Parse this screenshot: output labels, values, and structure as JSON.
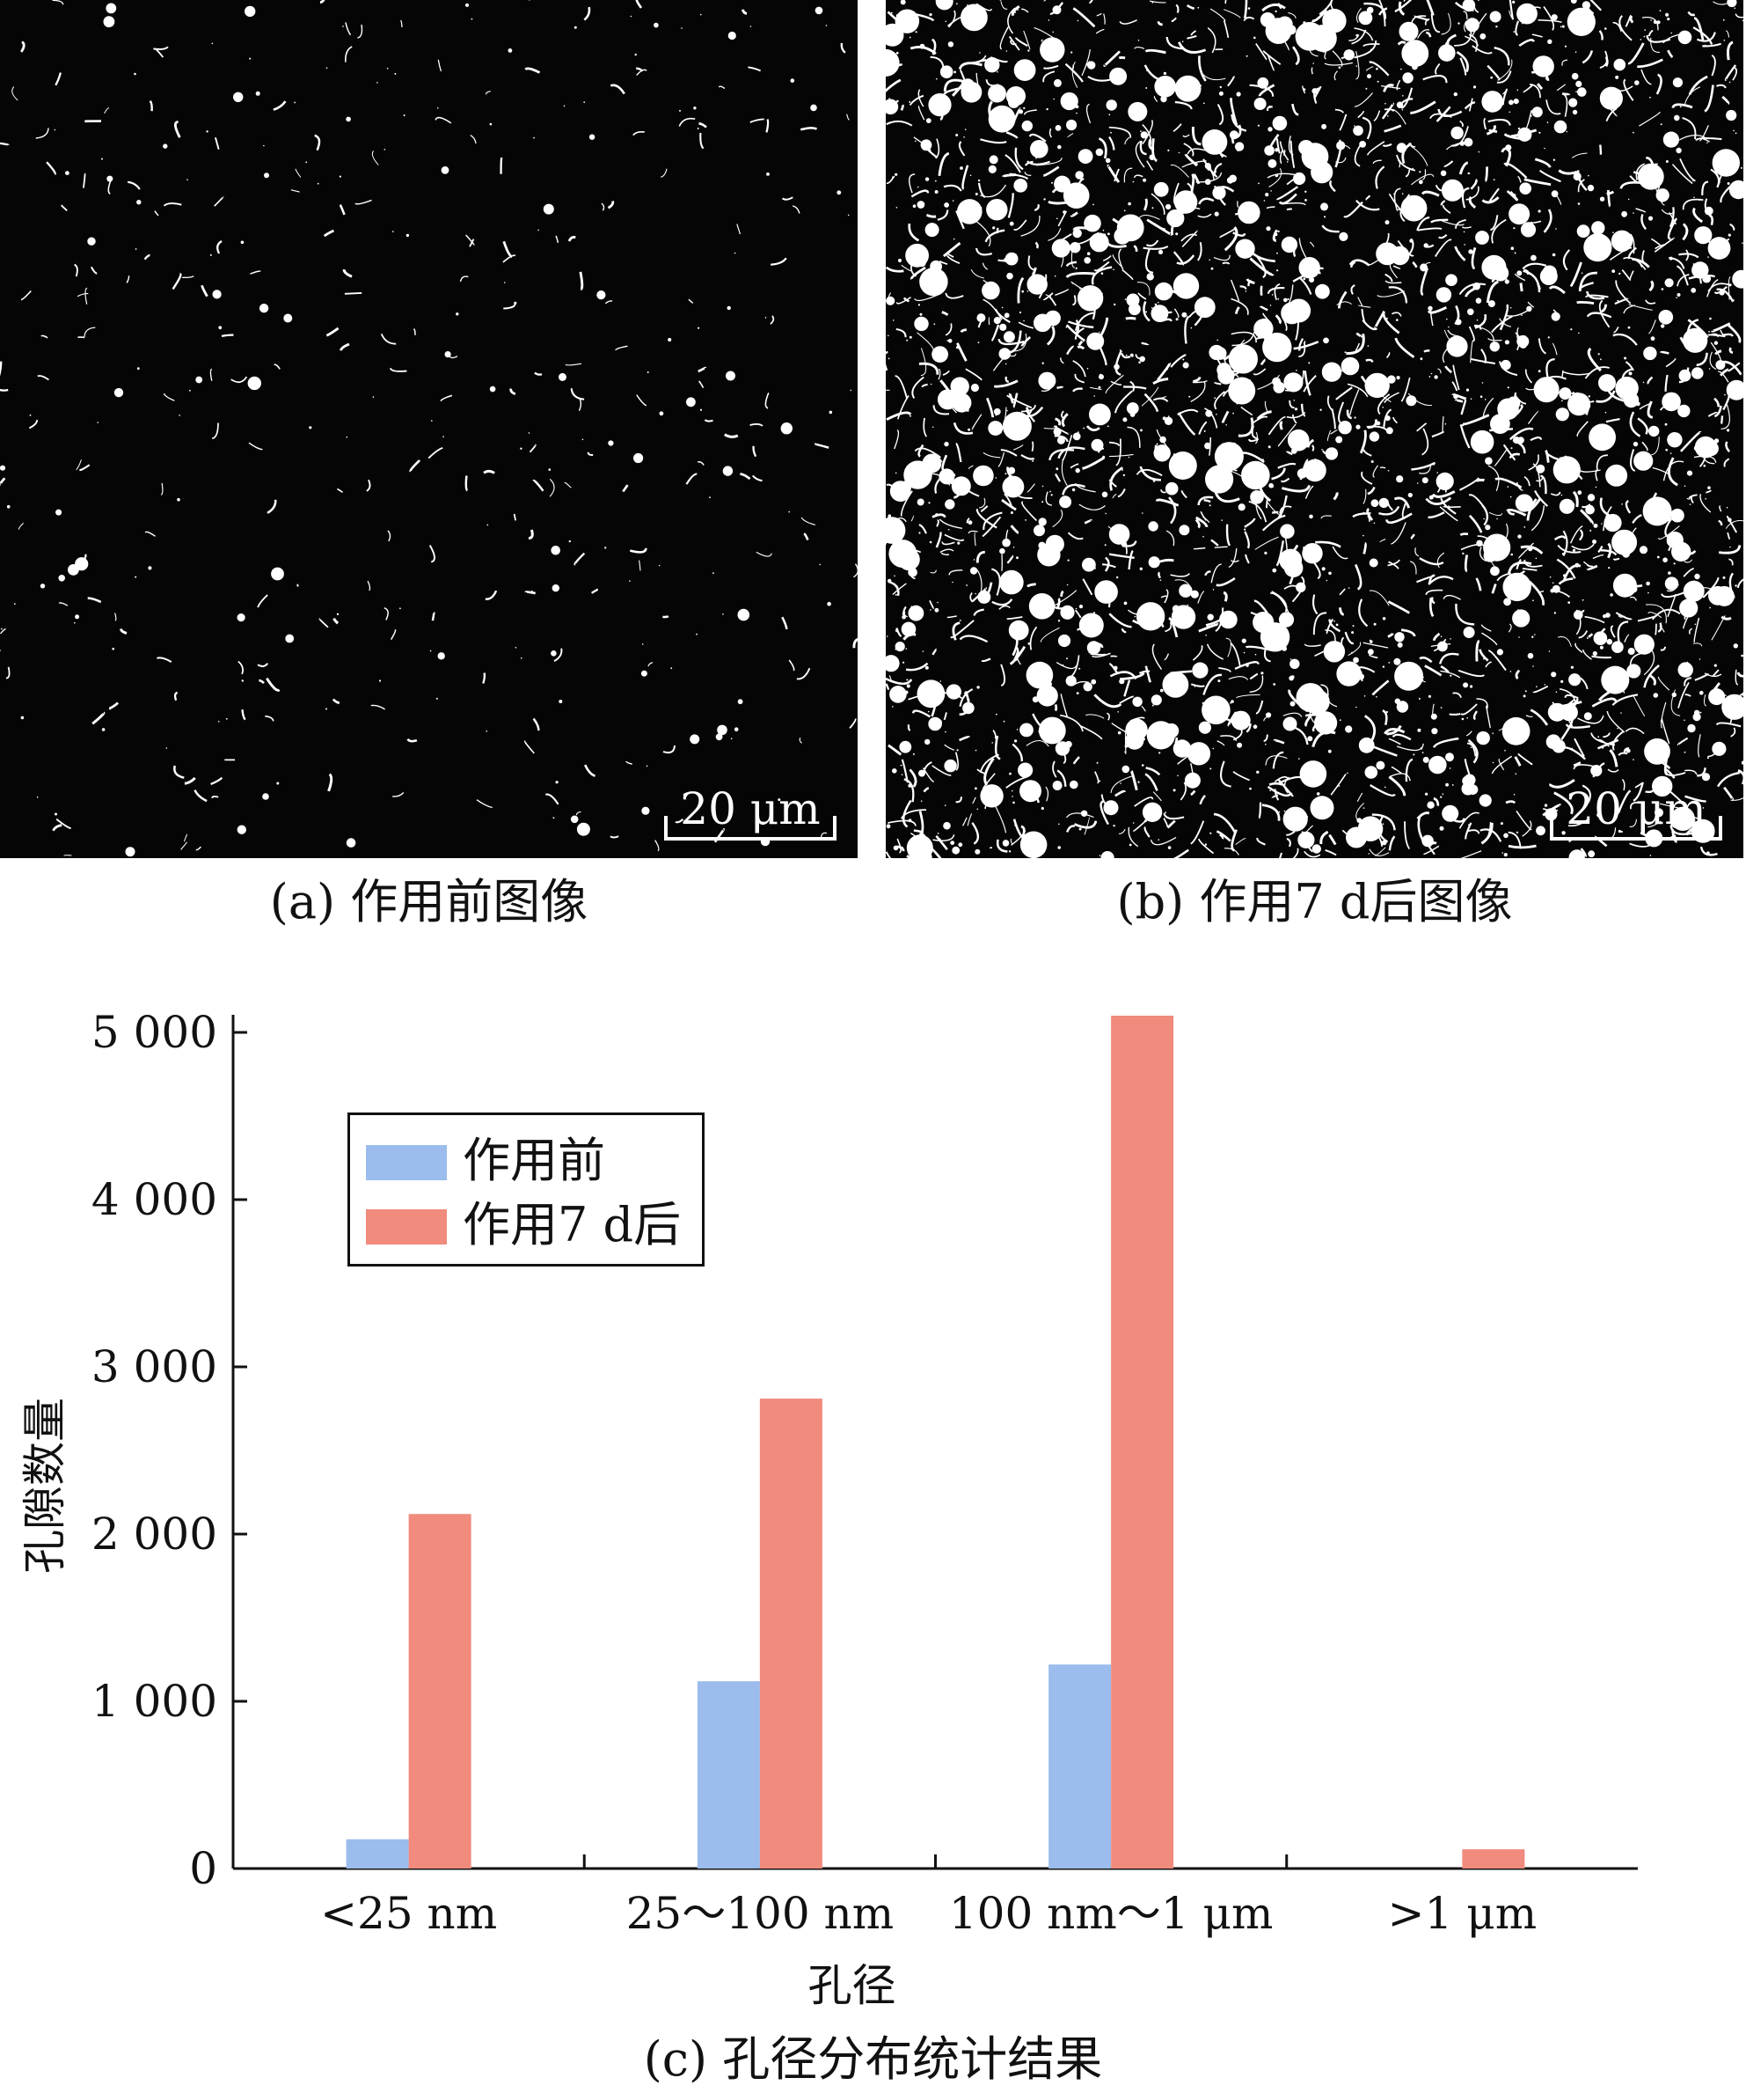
{
  "panel_a": {
    "scale_label": "20 μm",
    "caption": "(a) 作用前图像"
  },
  "panel_b": {
    "scale_label": "20 μm",
    "caption": "(b) 作用7 d后图像"
  },
  "panel_c_caption": "(c) 孔径分布统计结果",
  "chart_data": {
    "type": "bar",
    "categories": [
      "<25 nm",
      "25～100 nm",
      "100 nm～1 μm",
      ">1 μm"
    ],
    "series": [
      {
        "name": "作用前",
        "color": "#9bbcec",
        "values": [
          175,
          1120,
          1220,
          0
        ]
      },
      {
        "name": "作用7 d后",
        "color": "#f08b7e",
        "values": [
          2120,
          2810,
          5100,
          115
        ]
      }
    ],
    "xlabel": "孔径",
    "ylabel": "孔隙数量",
    "ylim": [
      0,
      5000
    ],
    "yticks": [
      0,
      1000,
      2000,
      3000,
      4000,
      5000
    ],
    "ytick_labels": [
      "0",
      "1 000",
      "2 000",
      "3 000",
      "4 000",
      "5 000"
    ],
    "legend_position": "top-left",
    "grid": false
  }
}
